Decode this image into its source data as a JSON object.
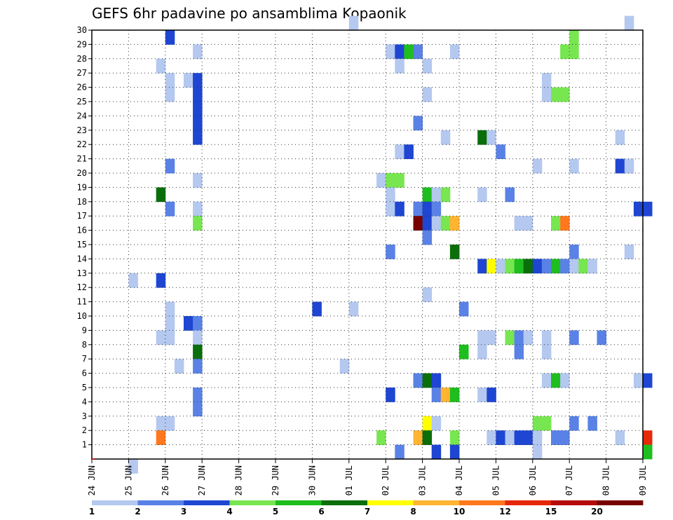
{
  "chart_data": {
    "type": "heatmap",
    "title": "GEFS 6hr padavine po ansamblima Kopaonik",
    "xlabel": "",
    "ylabel": "",
    "x_ticks": [
      "24 JUN",
      "25 JUN",
      "26 JUN",
      "27 JUN",
      "28 JUN",
      "29 JUN",
      "30 JUN",
      "01 JUL",
      "02 JUL",
      "03 JUL",
      "04 JUL",
      "05 JUL",
      "06 JUL",
      "07 JUL",
      "08 JUL",
      "09 JUL"
    ],
    "x_unit": "6-hour step (4 steps per day)",
    "xlim": [
      0,
      60
    ],
    "y_ticks": [
      1,
      2,
      3,
      4,
      5,
      6,
      7,
      8,
      9,
      10,
      11,
      12,
      13,
      14,
      15,
      16,
      17,
      18,
      19,
      20,
      21,
      22,
      23,
      24,
      25,
      26,
      27,
      28,
      29,
      30
    ],
    "ylim": [
      0,
      30
    ],
    "grid": true,
    "legend": {
      "placement": "bottom",
      "labels": [
        "1",
        "2",
        "3",
        "4",
        "5",
        "6",
        "7",
        "8",
        "10",
        "12",
        "15",
        "20"
      ],
      "colors": [
        "#b4c8f0",
        "#5a82e6",
        "#1e46d2",
        "#78e650",
        "#1ebe1e",
        "#0a6e0a",
        "#ffff00",
        "#ffb432",
        "#ff781e",
        "#e6280a",
        "#b40a0a",
        "#780000"
      ]
    },
    "cells": [
      [
        28,
        30,
        0
      ],
      [
        58,
        30,
        0
      ],
      [
        8,
        29,
        2
      ],
      [
        52,
        29,
        3
      ],
      [
        11,
        28,
        0
      ],
      [
        32,
        28,
        0
      ],
      [
        33,
        28,
        2
      ],
      [
        34,
        28,
        4
      ],
      [
        35,
        28,
        1
      ],
      [
        39,
        28,
        0
      ],
      [
        51,
        28,
        3
      ],
      [
        52,
        28,
        3
      ],
      [
        7,
        27,
        0
      ],
      [
        33,
        27,
        0
      ],
      [
        36,
        27,
        0
      ],
      [
        8,
        26,
        0
      ],
      [
        10,
        26,
        0
      ],
      [
        11,
        26,
        2
      ],
      [
        49,
        26,
        0
      ],
      [
        8,
        25,
        0
      ],
      [
        11,
        25,
        2
      ],
      [
        36,
        25,
        0
      ],
      [
        49,
        25,
        0
      ],
      [
        50,
        25,
        3
      ],
      [
        51,
        25,
        3
      ],
      [
        11,
        24,
        2
      ],
      [
        11,
        23,
        2
      ],
      [
        35,
        23,
        1
      ],
      [
        11,
        22,
        2
      ],
      [
        38,
        22,
        0
      ],
      [
        42,
        22,
        5
      ],
      [
        43,
        22,
        0
      ],
      [
        57,
        22,
        0
      ],
      [
        33,
        21,
        0
      ],
      [
        34,
        21,
        2
      ],
      [
        44,
        21,
        1
      ],
      [
        8,
        20,
        1
      ],
      [
        48,
        20,
        0
      ],
      [
        52,
        20,
        0
      ],
      [
        57,
        20,
        2
      ],
      [
        58,
        20,
        0
      ],
      [
        11,
        19,
        0
      ],
      [
        31,
        19,
        0
      ],
      [
        32,
        19,
        3
      ],
      [
        33,
        19,
        3
      ],
      [
        7,
        18,
        5
      ],
      [
        32,
        18,
        0
      ],
      [
        36,
        18,
        4
      ],
      [
        37,
        18,
        0
      ],
      [
        38,
        18,
        3
      ],
      [
        42,
        18,
        0
      ],
      [
        45,
        18,
        1
      ],
      [
        8,
        17,
        1
      ],
      [
        11,
        17,
        0
      ],
      [
        32,
        17,
        0
      ],
      [
        33,
        17,
        2
      ],
      [
        35,
        17,
        1
      ],
      [
        36,
        17,
        2
      ],
      [
        37,
        17,
        1
      ],
      [
        59,
        17,
        2
      ],
      [
        60,
        17,
        2
      ],
      [
        11,
        16,
        3
      ],
      [
        35,
        16,
        11
      ],
      [
        36,
        16,
        2
      ],
      [
        37,
        16,
        0
      ],
      [
        38,
        16,
        3
      ],
      [
        39,
        16,
        7
      ],
      [
        46,
        16,
        0
      ],
      [
        47,
        16,
        0
      ],
      [
        50,
        16,
        3
      ],
      [
        51,
        16,
        8
      ],
      [
        36,
        15,
        1
      ],
      [
        32,
        14,
        1
      ],
      [
        39,
        14,
        5
      ],
      [
        52,
        14,
        1
      ],
      [
        58,
        14,
        0
      ],
      [
        42,
        13,
        2
      ],
      [
        43,
        13,
        6
      ],
      [
        44,
        13,
        0
      ],
      [
        45,
        13,
        3
      ],
      [
        46,
        13,
        4
      ],
      [
        47,
        13,
        5
      ],
      [
        48,
        13,
        2
      ],
      [
        49,
        13,
        1
      ],
      [
        50,
        13,
        4
      ],
      [
        51,
        13,
        1
      ],
      [
        52,
        13,
        0
      ],
      [
        53,
        13,
        3
      ],
      [
        54,
        13,
        0
      ],
      [
        4,
        12,
        0
      ],
      [
        7,
        12,
        2
      ],
      [
        36,
        11,
        0
      ],
      [
        8,
        10,
        0
      ],
      [
        24,
        10,
        2
      ],
      [
        28,
        10,
        0
      ],
      [
        40,
        10,
        1
      ],
      [
        8,
        9,
        0
      ],
      [
        10,
        9,
        2
      ],
      [
        11,
        9,
        1
      ],
      [
        7,
        8,
        0
      ],
      [
        8,
        8,
        0
      ],
      [
        11,
        8,
        0
      ],
      [
        42,
        8,
        0
      ],
      [
        43,
        8,
        0
      ],
      [
        45,
        8,
        3
      ],
      [
        46,
        8,
        1
      ],
      [
        47,
        8,
        0
      ],
      [
        49,
        8,
        0
      ],
      [
        52,
        8,
        1
      ],
      [
        55,
        8,
        1
      ],
      [
        11,
        7,
        5
      ],
      [
        40,
        7,
        4
      ],
      [
        42,
        7,
        0
      ],
      [
        46,
        7,
        1
      ],
      [
        49,
        7,
        0
      ],
      [
        9,
        6,
        0
      ],
      [
        11,
        6,
        1
      ],
      [
        27,
        6,
        0
      ],
      [
        35,
        5,
        1
      ],
      [
        36,
        5,
        5
      ],
      [
        37,
        5,
        2
      ],
      [
        49,
        5,
        0
      ],
      [
        50,
        5,
        4
      ],
      [
        51,
        5,
        0
      ],
      [
        59,
        5,
        0
      ],
      [
        60,
        5,
        2
      ],
      [
        11,
        4,
        1
      ],
      [
        32,
        4,
        2
      ],
      [
        37,
        4,
        1
      ],
      [
        38,
        4,
        7
      ],
      [
        39,
        4,
        4
      ],
      [
        42,
        4,
        0
      ],
      [
        43,
        4,
        2
      ],
      [
        11,
        3,
        1
      ],
      [
        7,
        2,
        0
      ],
      [
        8,
        2,
        0
      ],
      [
        36,
        2,
        6
      ],
      [
        37,
        2,
        0
      ],
      [
        48,
        2,
        3
      ],
      [
        49,
        2,
        3
      ],
      [
        52,
        2,
        1
      ],
      [
        54,
        2,
        1
      ],
      [
        7,
        1,
        8
      ],
      [
        31,
        1,
        3
      ],
      [
        35,
        1,
        7
      ],
      [
        36,
        1,
        5
      ],
      [
        39,
        1,
        3
      ],
      [
        43,
        1,
        0
      ],
      [
        44,
        1,
        2
      ],
      [
        45,
        1,
        0
      ],
      [
        46,
        1,
        2
      ],
      [
        47,
        1,
        2
      ],
      [
        48,
        1,
        0
      ],
      [
        50,
        1,
        1
      ],
      [
        51,
        1,
        1
      ],
      [
        57,
        1,
        0
      ],
      [
        60,
        1,
        9
      ],
      [
        33,
        0,
        1
      ],
      [
        37,
        0,
        2
      ],
      [
        39,
        0,
        2
      ],
      [
        48,
        0,
        0
      ],
      [
        60,
        0,
        4
      ],
      [
        4,
        -1,
        0
      ]
    ]
  }
}
